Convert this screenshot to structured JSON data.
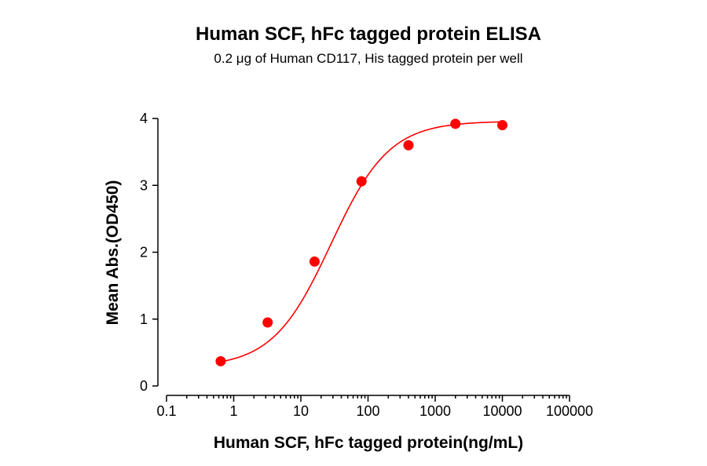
{
  "chart_data": {
    "type": "scatter",
    "title": "Human SCF, hFc tagged protein ELISA",
    "subtitle": "0.2 μg of Human CD117, His tagged protein per well",
    "xlabel": "Human SCF, hFc tagged protein(ng/mL)",
    "ylabel": "Mean Abs.(OD450)",
    "x_scale": "log",
    "xlim": [
      0.1,
      100000
    ],
    "ylim": [
      0,
      4
    ],
    "x_ticks": [
      0.1,
      1,
      10,
      100,
      1000,
      10000,
      100000
    ],
    "x_tick_labels": [
      "0.1",
      "1",
      "10",
      "100",
      "1000",
      "10000",
      "100000"
    ],
    "y_ticks": [
      0,
      1,
      2,
      3,
      4
    ],
    "y_tick_labels": [
      "0",
      "1",
      "2",
      "3",
      "4"
    ],
    "grid": false,
    "legend": "none",
    "series": [
      {
        "x": [
          0.64,
          3.2,
          16,
          80,
          400,
          2000,
          10000
        ],
        "y": [
          0.37,
          0.95,
          1.86,
          3.06,
          3.6,
          3.92,
          3.9
        ],
        "color": "#ff0000",
        "marker": "circle",
        "fit": "four-parameter logistic"
      }
    ]
  }
}
